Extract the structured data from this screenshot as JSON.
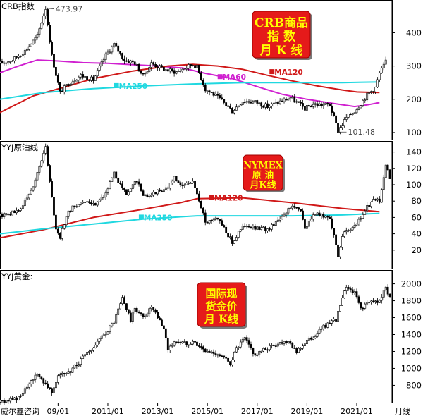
{
  "app": {
    "watermark": "威尔鑫咨询",
    "x_axis_unit": "月线"
  },
  "chart_data": [
    {
      "type": "candlestick",
      "panel_label": "CRB指数",
      "badge_lines": [
        "CRB商品",
        "指  数",
        "月 K 线"
      ],
      "y_ticks": [
        100,
        200,
        300,
        400
      ],
      "ylim": [
        85,
        490
      ],
      "annotations": {
        "high": {
          "label": "473.97",
          "date": "2008-07",
          "value": 473.97
        },
        "low": {
          "label": "101.48",
          "date": "2020-04",
          "value": 101.48
        }
      },
      "series": [
        {
          "name": "MA60",
          "label": "MA60",
          "color": "#d020d0",
          "points": [
            [
              "2006-09",
              280
            ],
            [
              "2007-06",
              300
            ],
            [
              "2008-03",
              318
            ],
            [
              "2009-01",
              315
            ],
            [
              "2010-01",
              310
            ],
            [
              "2011-01",
              308
            ],
            [
              "2012-01",
              304
            ],
            [
              "2013-01",
              300
            ],
            [
              "2014-01",
              294
            ],
            [
              "2014-12",
              278
            ],
            [
              "2016-01",
              262
            ],
            [
              "2017-01",
              238
            ],
            [
              "2018-01",
              215
            ],
            [
              "2019-01",
              200
            ],
            [
              "2020-01",
              188
            ],
            [
              "2020-12",
              178
            ],
            [
              "2021-06",
              183
            ],
            [
              "2021-12",
              190
            ]
          ]
        },
        {
          "name": "MA120",
          "label": "MA120",
          "color": "#d01818",
          "points": [
            [
              "2006-09",
              160
            ],
            [
              "2008-01",
              210
            ],
            [
              "2009-06",
              240
            ],
            [
              "2010-06",
              262
            ],
            [
              "2012-01",
              285
            ],
            [
              "2013-06",
              300
            ],
            [
              "2014-06",
              305
            ],
            [
              "2015-06",
              300
            ],
            [
              "2016-06",
              290
            ],
            [
              "2017-06",
              272
            ],
            [
              "2018-06",
              255
            ],
            [
              "2019-06",
              240
            ],
            [
              "2020-06",
              228
            ],
            [
              "2021-01",
              222
            ],
            [
              "2021-12",
              220
            ]
          ]
        },
        {
          "name": "MA250",
          "label": "MA250",
          "color": "#20d8e0",
          "points": [
            [
              "2006-09",
              200
            ],
            [
              "2008-06",
              220
            ],
            [
              "2010-06",
              232
            ],
            [
              "2012-06",
              240
            ],
            [
              "2014-06",
              246
            ],
            [
              "2016-06",
              250
            ],
            [
              "2018-06",
              250
            ],
            [
              "2020-06",
              250
            ],
            [
              "2021-12",
              252
            ]
          ]
        }
      ],
      "close_path": [
        [
          "2006-09",
          308
        ],
        [
          "2007-03",
          318
        ],
        [
          "2007-09",
          345
        ],
        [
          "2008-03",
          390
        ],
        [
          "2008-07",
          473.97
        ],
        [
          "2008-10",
          330
        ],
        [
          "2009-02",
          220
        ],
        [
          "2009-06",
          248
        ],
        [
          "2009-12",
          272
        ],
        [
          "2010-06",
          258
        ],
        [
          "2010-12",
          332
        ],
        [
          "2011-04",
          365
        ],
        [
          "2011-09",
          318
        ],
        [
          "2012-02",
          310
        ],
        [
          "2012-06",
          270
        ],
        [
          "2012-10",
          308
        ],
        [
          "2013-04",
          290
        ],
        [
          "2013-10",
          282
        ],
        [
          "2014-06",
          305
        ],
        [
          "2014-08",
          297
        ],
        [
          "2014-12",
          230
        ],
        [
          "2015-04",
          215
        ],
        [
          "2015-08",
          195
        ],
        [
          "2016-01",
          165
        ],
        [
          "2016-06",
          195
        ],
        [
          "2016-12",
          192
        ],
        [
          "2017-06",
          178
        ],
        [
          "2017-12",
          193
        ],
        [
          "2018-05",
          205
        ],
        [
          "2018-12",
          172
        ],
        [
          "2019-04",
          185
        ],
        [
          "2019-12",
          183
        ],
        [
          "2020-04",
          105
        ],
        [
          "2020-08",
          145
        ],
        [
          "2020-12",
          165
        ],
        [
          "2021-03",
          188
        ],
        [
          "2021-06",
          213
        ],
        [
          "2021-10",
          235
        ],
        [
          "2021-12",
          278
        ],
        [
          "2022-03",
          312
        ]
      ]
    },
    {
      "type": "candlestick",
      "panel_label": "YYJ原油线",
      "badge_lines": [
        "NYMEX",
        "原  油",
        "月K线"
      ],
      "y_ticks": [
        20,
        40,
        60,
        80,
        100,
        120,
        140
      ],
      "ylim": [
        0,
        150
      ],
      "series": [
        {
          "name": "MA120",
          "label": "MA120",
          "color": "#d01818",
          "points": [
            [
              "2006-09",
              35
            ],
            [
              "2008-06",
              45
            ],
            [
              "2010-06",
              60
            ],
            [
              "2012-06",
              70
            ],
            [
              "2013-12",
              78
            ],
            [
              "2014-08",
              83
            ],
            [
              "2016-06",
              84
            ],
            [
              "2018-06",
              78
            ],
            [
              "2020-06",
              71
            ],
            [
              "2021-12",
              67
            ]
          ]
        },
        {
          "name": "MA250",
          "label": "MA250",
          "color": "#20d8e0",
          "points": [
            [
              "2006-09",
              40
            ],
            [
              "2008-06",
              46
            ],
            [
              "2010-06",
              52
            ],
            [
              "2012-06",
              58
            ],
            [
              "2014-08",
              62
            ],
            [
              "2016-06",
              62
            ],
            [
              "2018-06",
              62
            ],
            [
              "2020-06",
              63
            ],
            [
              "2021-12",
              65
            ]
          ]
        }
      ],
      "close_path": [
        [
          "2006-09",
          62
        ],
        [
          "2007-06",
          68
        ],
        [
          "2007-12",
          92
        ],
        [
          "2008-07",
          145
        ],
        [
          "2008-12",
          45
        ],
        [
          "2009-02",
          36
        ],
        [
          "2009-06",
          68
        ],
        [
          "2009-12",
          79
        ],
        [
          "2010-06",
          75
        ],
        [
          "2010-12",
          90
        ],
        [
          "2011-04",
          113
        ],
        [
          "2011-10",
          88
        ],
        [
          "2012-03",
          106
        ],
        [
          "2012-06",
          85
        ],
        [
          "2012-12",
          91
        ],
        [
          "2013-06",
          97
        ],
        [
          "2013-09",
          108
        ],
        [
          "2014-01",
          98
        ],
        [
          "2014-06",
          105
        ],
        [
          "2014-12",
          55
        ],
        [
          "2015-06",
          60
        ],
        [
          "2016-01",
          30
        ],
        [
          "2016-06",
          49
        ],
        [
          "2017-06",
          45
        ],
        [
          "2017-12",
          60
        ],
        [
          "2018-06",
          74
        ],
        [
          "2018-10",
          70
        ],
        [
          "2018-12",
          45
        ],
        [
          "2019-04",
          64
        ],
        [
          "2019-12",
          61
        ],
        [
          "2020-04",
          12
        ],
        [
          "2020-06",
          39
        ],
        [
          "2020-12",
          48
        ],
        [
          "2021-03",
          60
        ],
        [
          "2021-06",
          73
        ],
        [
          "2021-10",
          83
        ],
        [
          "2021-12",
          78
        ],
        [
          "2022-03",
          125
        ],
        [
          "2022-05",
          108
        ]
      ]
    },
    {
      "type": "candlestick",
      "panel_label": "YYJ黄金:",
      "badge_lines": [
        "国际现",
        "货金价",
        "月 K线"
      ],
      "y_ticks": [
        800,
        1000,
        1200,
        1400,
        1600,
        1800,
        2000
      ],
      "ylim": [
        620,
        2130
      ],
      "x_ticks": [
        "09/01",
        "2011/01",
        "2013/01",
        "2015/01",
        "2017/01",
        "2019/01",
        "2021/01"
      ],
      "close_path": [
        [
          "2006-09",
          600
        ],
        [
          "2007-06",
          650
        ],
        [
          "2007-12",
          830
        ],
        [
          "2008-03",
          940
        ],
        [
          "2008-10",
          730
        ],
        [
          "2009-01",
          920
        ],
        [
          "2009-06",
          940
        ],
        [
          "2009-12",
          1100
        ],
        [
          "2010-06",
          1240
        ],
        [
          "2010-12",
          1420
        ],
        [
          "2011-04",
          1550
        ],
        [
          "2011-08",
          1830
        ],
        [
          "2011-12",
          1570
        ],
        [
          "2012-02",
          1710
        ],
        [
          "2012-06",
          1600
        ],
        [
          "2012-10",
          1720
        ],
        [
          "2013-04",
          1470
        ],
        [
          "2013-06",
          1230
        ],
        [
          "2013-10",
          1320
        ],
        [
          "2014-03",
          1290
        ],
        [
          "2014-06",
          1320
        ],
        [
          "2014-12",
          1200
        ],
        [
          "2015-06",
          1170
        ],
        [
          "2015-12",
          1060
        ],
        [
          "2016-03",
          1230
        ],
        [
          "2016-07",
          1350
        ],
        [
          "2016-12",
          1150
        ],
        [
          "2017-06",
          1240
        ],
        [
          "2017-12",
          1300
        ],
        [
          "2018-04",
          1330
        ],
        [
          "2018-08",
          1200
        ],
        [
          "2019-01",
          1320
        ],
        [
          "2019-06",
          1410
        ],
        [
          "2019-09",
          1500
        ],
        [
          "2019-12",
          1520
        ],
        [
          "2020-03",
          1580
        ],
        [
          "2020-08",
          1970
        ],
        [
          "2020-12",
          1890
        ],
        [
          "2021-03",
          1710
        ],
        [
          "2021-06",
          1770
        ],
        [
          "2021-12",
          1800
        ],
        [
          "2022-03",
          1950
        ],
        [
          "2022-05",
          1850
        ]
      ]
    }
  ],
  "x_range": [
    "2006-09",
    "2022-06"
  ]
}
